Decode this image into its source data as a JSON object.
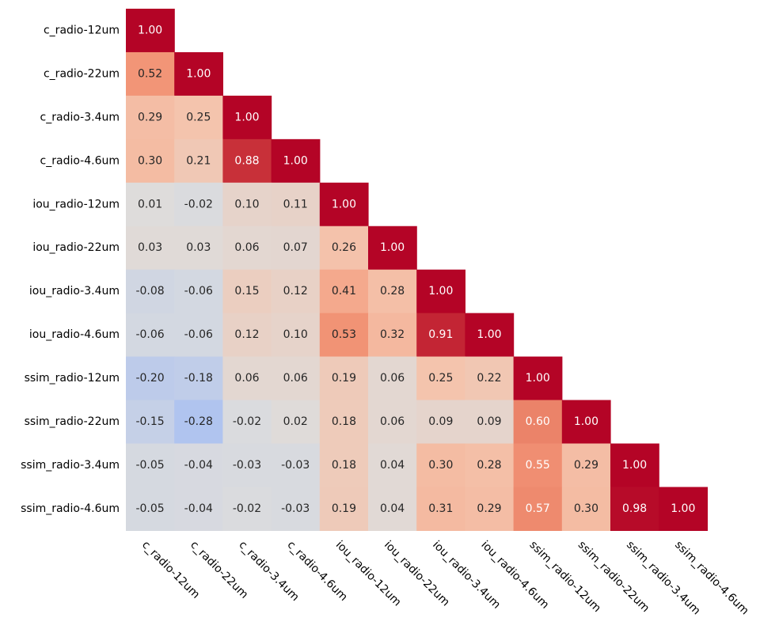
{
  "chart_data": {
    "type": "heatmap",
    "title": "",
    "xlabel": "",
    "ylabel": "",
    "mask": "lower-triangle",
    "value_format": "2f",
    "colormap": "coolwarm",
    "vmin": -1,
    "vmax": 1,
    "legend": "none",
    "rows": [
      "c_radio-12um",
      "c_radio-22um",
      "c_radio-3.4um",
      "c_radio-4.6um",
      "iou_radio-12um",
      "iou_radio-22um",
      "iou_radio-3.4um",
      "iou_radio-4.6um",
      "ssim_radio-12um",
      "ssim_radio-22um",
      "ssim_radio-3.4um",
      "ssim_radio-4.6um"
    ],
    "columns": [
      "c_radio-12um",
      "c_radio-22um",
      "c_radio-3.4um",
      "c_radio-4.6um",
      "iou_radio-12um",
      "iou_radio-22um",
      "iou_radio-3.4um",
      "iou_radio-4.6um",
      "ssim_radio-12um",
      "ssim_radio-22um",
      "ssim_radio-3.4um",
      "ssim_radio-4.6um"
    ],
    "values": [
      [
        1.0
      ],
      [
        0.52,
        1.0
      ],
      [
        0.29,
        0.25,
        1.0
      ],
      [
        0.3,
        0.21,
        0.88,
        1.0
      ],
      [
        0.01,
        -0.02,
        0.1,
        0.11,
        1.0
      ],
      [
        0.03,
        0.03,
        0.06,
        0.07,
        0.26,
        1.0
      ],
      [
        -0.08,
        -0.06,
        0.15,
        0.12,
        0.41,
        0.28,
        1.0
      ],
      [
        -0.06,
        -0.06,
        0.12,
        0.1,
        0.53,
        0.32,
        0.91,
        1.0
      ],
      [
        -0.2,
        -0.18,
        0.06,
        0.06,
        0.19,
        0.06,
        0.25,
        0.22,
        1.0
      ],
      [
        -0.15,
        -0.28,
        -0.02,
        0.02,
        0.18,
        0.06,
        0.09,
        0.09,
        0.6,
        1.0
      ],
      [
        -0.05,
        -0.04,
        -0.03,
        -0.03,
        0.18,
        0.04,
        0.3,
        0.28,
        0.55,
        0.29,
        1.0
      ],
      [
        -0.05,
        -0.04,
        -0.02,
        -0.03,
        0.19,
        0.04,
        0.31,
        0.29,
        0.57,
        0.3,
        0.98,
        1.0
      ]
    ]
  }
}
